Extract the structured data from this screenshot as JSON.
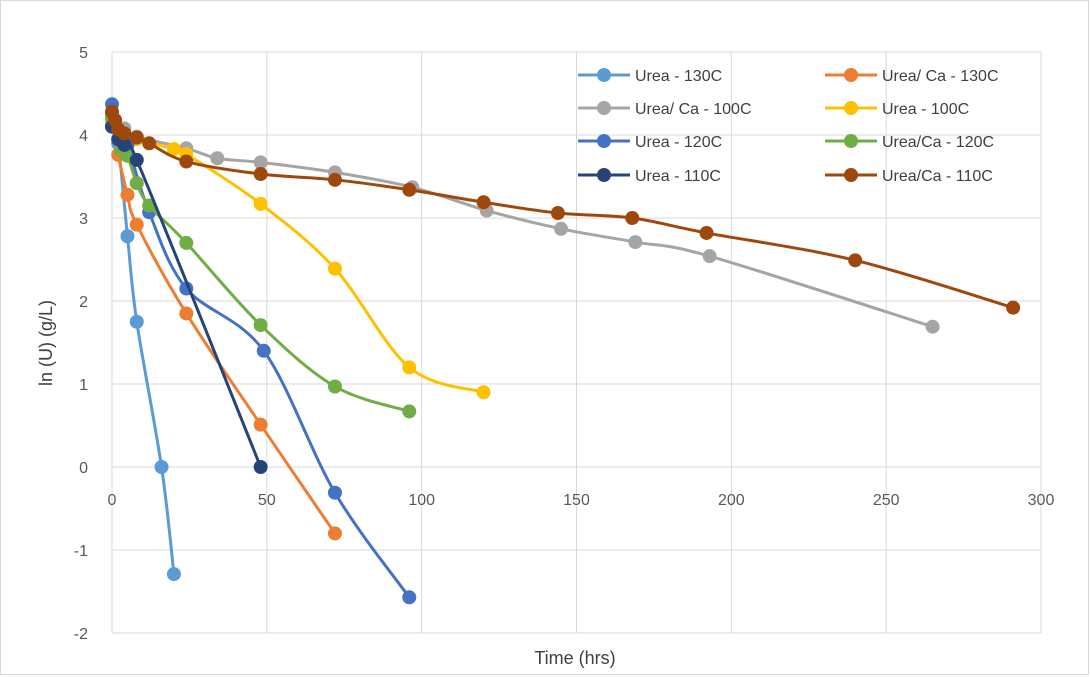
{
  "chart_data": {
    "type": "scatter",
    "title": "",
    "xlabel": "Time (hrs)",
    "ylabel": "ln (U) (g/L)",
    "xlim": [
      0,
      300
    ],
    "ylim": [
      -2,
      5
    ],
    "x_ticks": [
      0,
      50,
      100,
      150,
      200,
      250,
      300
    ],
    "y_ticks": [
      -2,
      -1,
      0,
      1,
      2,
      3,
      4,
      5
    ],
    "grid": true,
    "legend_position": "top-right",
    "series": [
      {
        "name": "Urea - 130C",
        "color": "#5b9bd5",
        "x": [
          0,
          2,
          5,
          8,
          16,
          20
        ],
        "y": [
          4.25,
          3.9,
          2.78,
          1.75,
          0.0,
          -1.29
        ]
      },
      {
        "name": "Urea/ Ca - 130C",
        "color": "#ed7d31",
        "x": [
          0,
          2,
          5,
          8,
          24,
          48,
          72
        ],
        "y": [
          4.2,
          3.76,
          3.28,
          2.92,
          1.85,
          0.51,
          -0.8
        ]
      },
      {
        "name": "Urea/ Ca - 100C",
        "color": "#a5a5a5",
        "x": [
          0,
          4,
          8,
          24,
          34,
          48,
          72,
          97,
          121,
          145,
          169,
          193,
          265
        ],
        "y": [
          4.25,
          4.08,
          3.98,
          3.84,
          3.72,
          3.67,
          3.55,
          3.37,
          3.09,
          2.87,
          2.71,
          2.54,
          1.69
        ]
      },
      {
        "name": "Urea - 100C",
        "color": "#ffc000",
        "x": [
          0,
          4,
          8,
          20,
          24,
          48,
          72,
          96,
          120
        ],
        "y": [
          4.15,
          4.0,
          3.95,
          3.83,
          3.77,
          3.17,
          2.39,
          1.2,
          0.9
        ]
      },
      {
        "name": "Urea - 120C",
        "color": "#4472c4",
        "x": [
          0,
          3,
          5,
          12,
          24,
          49,
          72,
          96
        ],
        "y": [
          4.37,
          3.95,
          3.88,
          3.07,
          2.15,
          1.4,
          -0.31,
          -1.57
        ]
      },
      {
        "name": "Urea/Ca - 120C",
        "color": "#70ad47",
        "x": [
          0,
          3,
          5,
          8,
          12,
          24,
          48,
          72,
          96
        ],
        "y": [
          4.2,
          3.82,
          3.75,
          3.42,
          3.15,
          2.7,
          1.71,
          0.97,
          0.67
        ]
      },
      {
        "name": "Urea - 110C",
        "color": "#264478",
        "x": [
          0,
          2,
          4,
          8,
          48
        ],
        "y": [
          4.1,
          3.95,
          3.88,
          3.7,
          0.0
        ]
      },
      {
        "name": "Urea/Ca - 110C",
        "color": "#9e480e",
        "x": [
          0,
          1,
          2,
          4,
          8,
          12,
          24,
          48,
          72,
          96,
          120,
          144,
          168,
          192,
          240,
          291
        ],
        "y": [
          4.28,
          4.18,
          4.07,
          4.02,
          3.97,
          3.9,
          3.68,
          3.53,
          3.46,
          3.34,
          3.19,
          3.06,
          3.0,
          2.82,
          2.49,
          1.92
        ]
      }
    ]
  }
}
